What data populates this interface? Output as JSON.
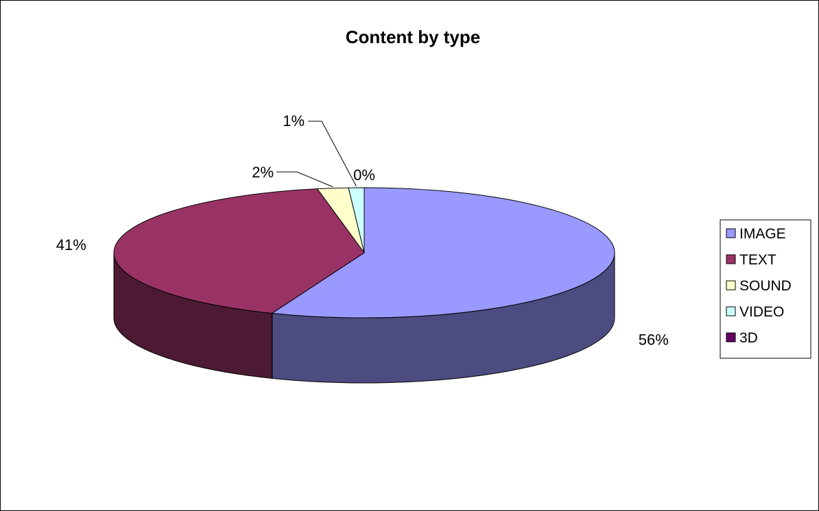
{
  "chart_data": {
    "type": "pie",
    "title": "Content by type",
    "legend_position": "right",
    "three_d": true,
    "categories": [
      "IMAGE",
      "TEXT",
      "SOUND",
      "VIDEO",
      "3D"
    ],
    "values": [
      56,
      41,
      2,
      1,
      0
    ],
    "data_labels": [
      "56%",
      "41%",
      "2%",
      "1%",
      "0%"
    ],
    "colors": [
      "#9999ff",
      "#993366",
      "#ffffcc",
      "#ccffff",
      "#660066"
    ],
    "side_colors": [
      "#4c4c80",
      "#4d1a33",
      "#808066",
      "#668080",
      "#330033"
    ]
  }
}
